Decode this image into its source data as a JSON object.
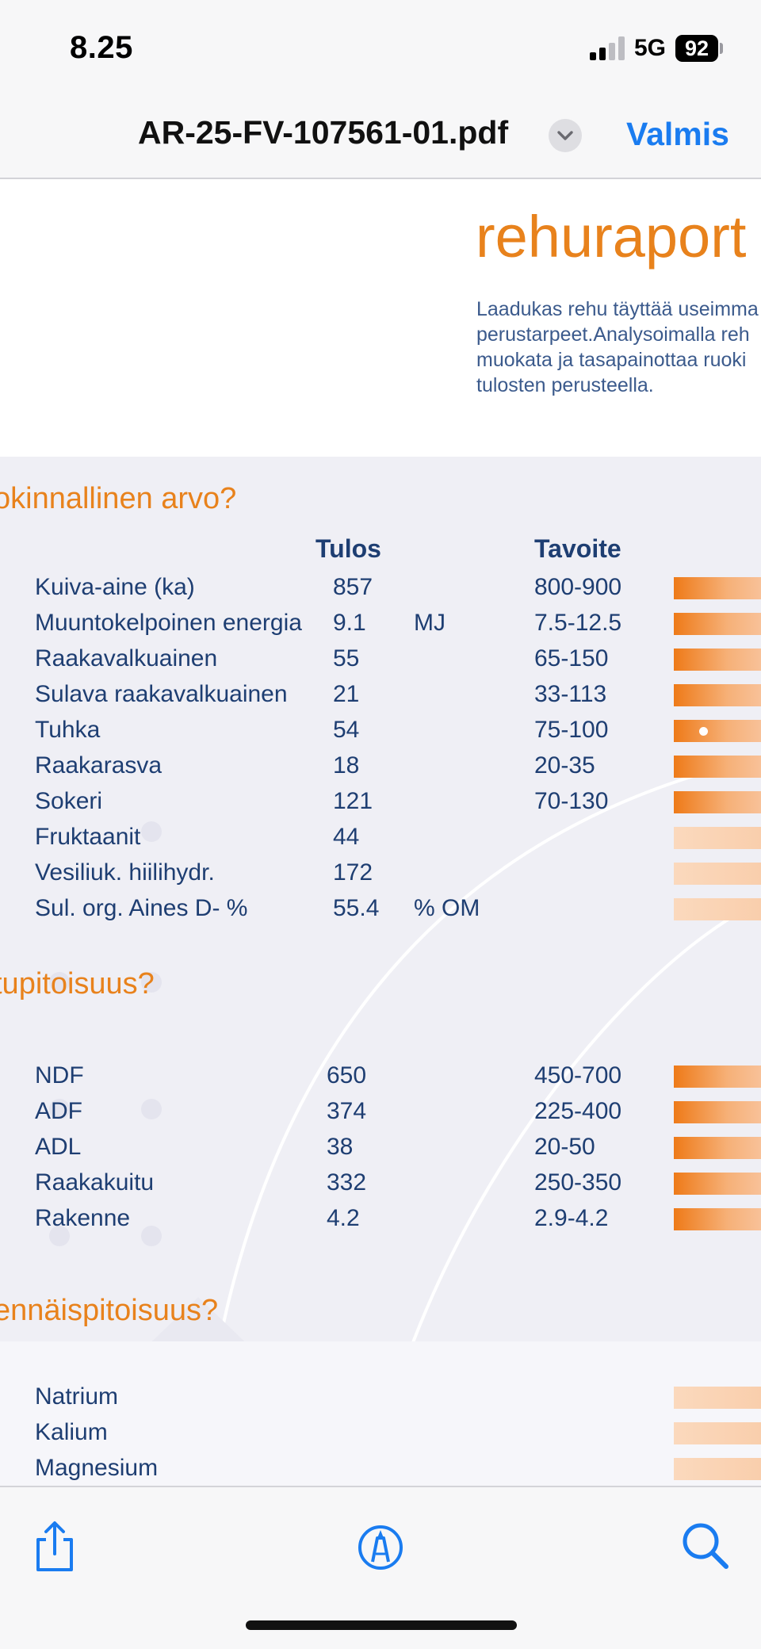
{
  "status": {
    "time": "8.25",
    "network": "5G",
    "battery": "92"
  },
  "nav": {
    "title": "AR-25-FV-107561-01.pdf",
    "done_label": "Valmis"
  },
  "doc": {
    "heading": "rehuraport",
    "intro_lines": [
      "Laadukas rehu täyttää useimma",
      "perustarpeet.Analysoimalla reh",
      "muokata ja tasapainottaa ruoki",
      "tulosten perusteella."
    ],
    "columns": {
      "result": "Tulos",
      "target": "Tavoite"
    },
    "sections": [
      {
        "title": "okinnallinen arvo?",
        "rows": [
          {
            "label": "Kuiva-aine (ka)",
            "result": "857",
            "unit": "",
            "target": "800-900"
          },
          {
            "label": "Muuntokelpoinen energia",
            "result": "9.1",
            "unit": "MJ",
            "target": "7.5-12.5"
          },
          {
            "label": "Raakavalkuainen",
            "result": "55",
            "unit": "",
            "target": "65-150"
          },
          {
            "label": "Sulava raakavalkuainen",
            "result": "21",
            "unit": "",
            "target": "33-113"
          },
          {
            "label": "Tuhka",
            "result": "54",
            "unit": "",
            "target": "75-100"
          },
          {
            "label": "Raakarasva",
            "result": "18",
            "unit": "",
            "target": "20-35"
          },
          {
            "label": "Sokeri",
            "result": "121",
            "unit": "",
            "target": "70-130"
          },
          {
            "label": "Fruktaanit",
            "result": "44",
            "unit": "",
            "target": ""
          },
          {
            "label": "Vesiliuk. hiilihydr.",
            "result": "172",
            "unit": "",
            "target": ""
          },
          {
            "label": "Sul. org. Aines D- %",
            "result": "55.4",
            "unit": "% OM",
            "target": ""
          }
        ]
      },
      {
        "title": "tupitoisuus?",
        "rows": [
          {
            "label": "NDF",
            "result": "650",
            "target": "450-700"
          },
          {
            "label": "ADF",
            "result": "374",
            "target": "225-400"
          },
          {
            "label": "ADL",
            "result": "38",
            "target": "20-50"
          },
          {
            "label": "Raakakuitu",
            "result": "332",
            "target": "250-350"
          },
          {
            "label": "Rakenne",
            "result": "4.2",
            "target": "2.9-4.2"
          }
        ]
      },
      {
        "title": "ennäispitoisuus?",
        "rows": [
          {
            "label": "Natrium"
          },
          {
            "label": "Kalium"
          },
          {
            "label": "Magnesium"
          }
        ]
      }
    ]
  },
  "toolbar": {
    "share": "share-icon",
    "markup": "markup-icon",
    "search": "search-icon"
  }
}
